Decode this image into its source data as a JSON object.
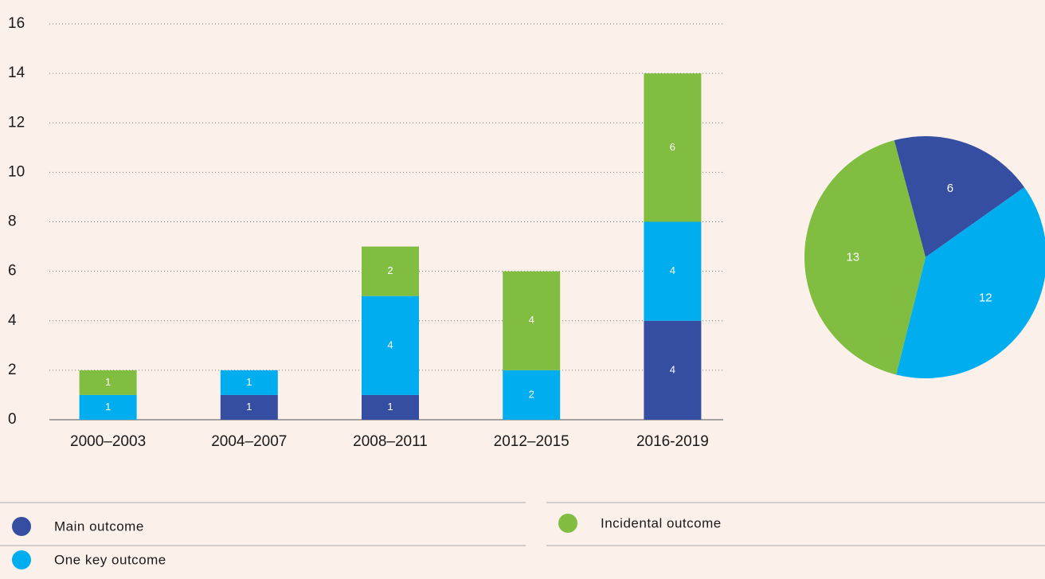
{
  "chart_data": [
    {
      "type": "stacked_bar",
      "categories": [
        "2000–2003",
        "2004–2007",
        "2008–2011",
        "2012–2015",
        "2016-2019"
      ],
      "series": [
        {
          "name": "Main outcome",
          "color": "#354ea1",
          "values": [
            null,
            1,
            1,
            null,
            4
          ]
        },
        {
          "name": "One key outcome",
          "color": "#00aeef",
          "values": [
            1,
            1,
            4,
            2,
            4
          ]
        },
        {
          "name": "Incidental outcome",
          "color": "#80bd41",
          "values": [
            1,
            null,
            2,
            4,
            6
          ]
        }
      ],
      "ylim": [
        0,
        16
      ],
      "yticks": [
        0,
        2,
        4,
        6,
        8,
        10,
        12,
        14,
        16
      ],
      "grid": true
    },
    {
      "type": "pie",
      "values": [
        6,
        12,
        13
      ],
      "colors": [
        "#354ea1",
        "#00aeef",
        "#80bd41"
      ]
    }
  ]
}
